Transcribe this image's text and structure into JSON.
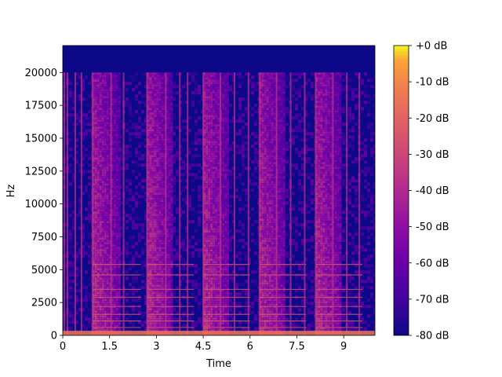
{
  "chart_data": {
    "type": "heatmap",
    "subtype": "spectrogram",
    "xlabel": "Time",
    "ylabel": "Hz",
    "xlim": [
      0,
      10
    ],
    "ylim": [
      0,
      22050
    ],
    "x_ticks": [
      0,
      1.5,
      3,
      4.5,
      6,
      7.5,
      9
    ],
    "x_tick_labels": [
      "0",
      "1.5",
      "3",
      "4.5",
      "6",
      "7.5",
      "9"
    ],
    "y_ticks": [
      0,
      2500,
      5000,
      7500,
      10000,
      12500,
      15000,
      17500,
      20000
    ],
    "y_tick_labels": [
      "0",
      "2500",
      "5000",
      "7500",
      "10000",
      "12500",
      "15000",
      "17500",
      "20000"
    ],
    "colorbar": {
      "colormap": "plasma",
      "range_db": [
        -80,
        0
      ],
      "ticks": [
        0,
        -10,
        -20,
        -30,
        -40,
        -50,
        -60,
        -70,
        -80
      ],
      "tick_labels": [
        "+0 dB",
        "-10 dB",
        "-20 dB",
        "-30 dB",
        "-40 dB",
        "-50 dB",
        "-60 dB",
        "-70 dB",
        "-80 dB"
      ]
    },
    "energy_cutoff_hz": 20000,
    "loud_segments": [
      {
        "start": 0.95,
        "end": 1.8,
        "level_db": -38
      },
      {
        "start": 2.7,
        "end": 3.5,
        "level_db": -38
      },
      {
        "start": 4.5,
        "end": 5.3,
        "level_db": -38
      },
      {
        "start": 6.3,
        "end": 7.1,
        "level_db": -38
      },
      {
        "start": 8.1,
        "end": 8.9,
        "level_db": -38
      }
    ],
    "onsets": [
      0.05,
      0.15,
      0.4,
      0.6,
      0.95,
      1.55,
      1.95,
      2.7,
      3.3,
      3.75,
      4.0,
      4.5,
      5.05,
      5.5,
      5.95,
      6.3,
      6.85,
      7.3,
      7.75,
      8.1,
      8.65,
      9.1,
      9.5
    ],
    "harmonic_lines_hz": [
      600,
      1100,
      1600,
      2200,
      2900,
      3500,
      4600,
      5400
    ]
  }
}
